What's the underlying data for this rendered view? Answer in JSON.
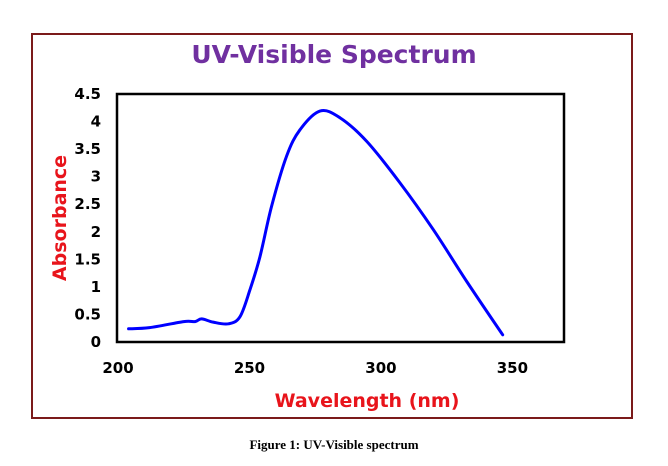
{
  "chart_data": {
    "type": "line",
    "title": "UV-Visible Spectrum",
    "xlabel": "Wavelength (nm)",
    "ylabel": "Absorbance",
    "xlim": [
      200,
      370
    ],
    "ylim": [
      0,
      4.5
    ],
    "xticks": [
      "200",
      "250",
      "300",
      "350"
    ],
    "yticks": [
      "0",
      "0.5",
      "1",
      "1.5",
      "2",
      "2.5",
      "3",
      "3.5",
      "4",
      "4.5"
    ],
    "grid": false,
    "series": [
      {
        "name": "Absorbance",
        "color": "#0000ff",
        "x": [
          204,
          212,
          225,
          229.3,
          231.8,
          236.2,
          242,
          246.4,
          250.2,
          254,
          258.4,
          264.1,
          269.2,
          276.8,
          284.4,
          294.6,
          307.2,
          319.9,
          332.6,
          346.3
        ],
        "y": [
          0.24,
          0.26,
          0.37,
          0.37,
          0.42,
          0.36,
          0.33,
          0.46,
          0.95,
          1.55,
          2.46,
          3.37,
          3.85,
          4.19,
          4.07,
          3.64,
          2.89,
          2.04,
          1.1,
          0.13
        ]
      }
    ]
  },
  "caption": "Figure 1: UV-Visible spectrum"
}
